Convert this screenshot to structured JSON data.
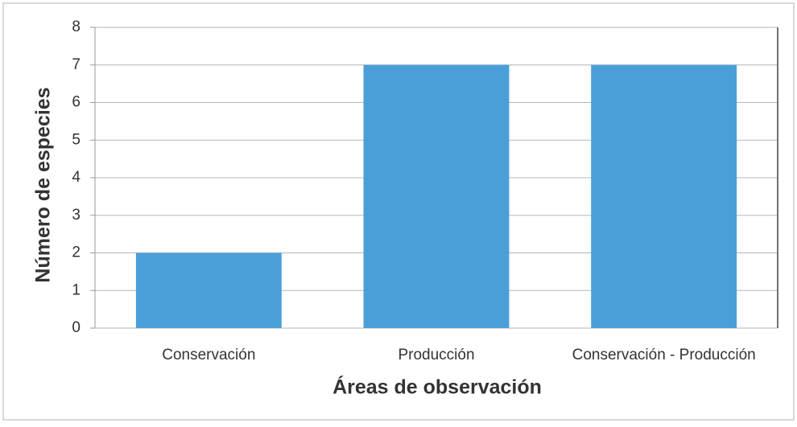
{
  "chart_data": {
    "type": "bar",
    "categories": [
      "Conservación",
      "Producción",
      "Conservación - Producción"
    ],
    "values": [
      2,
      7,
      7
    ],
    "color": "#4a9fd8",
    "ylim": [
      0,
      8
    ],
    "yticks": [
      0,
      1,
      2,
      3,
      4,
      5,
      6,
      7,
      8
    ],
    "grid": true,
    "x_label": "Áreas de observación",
    "y_label": "Número de especies"
  }
}
